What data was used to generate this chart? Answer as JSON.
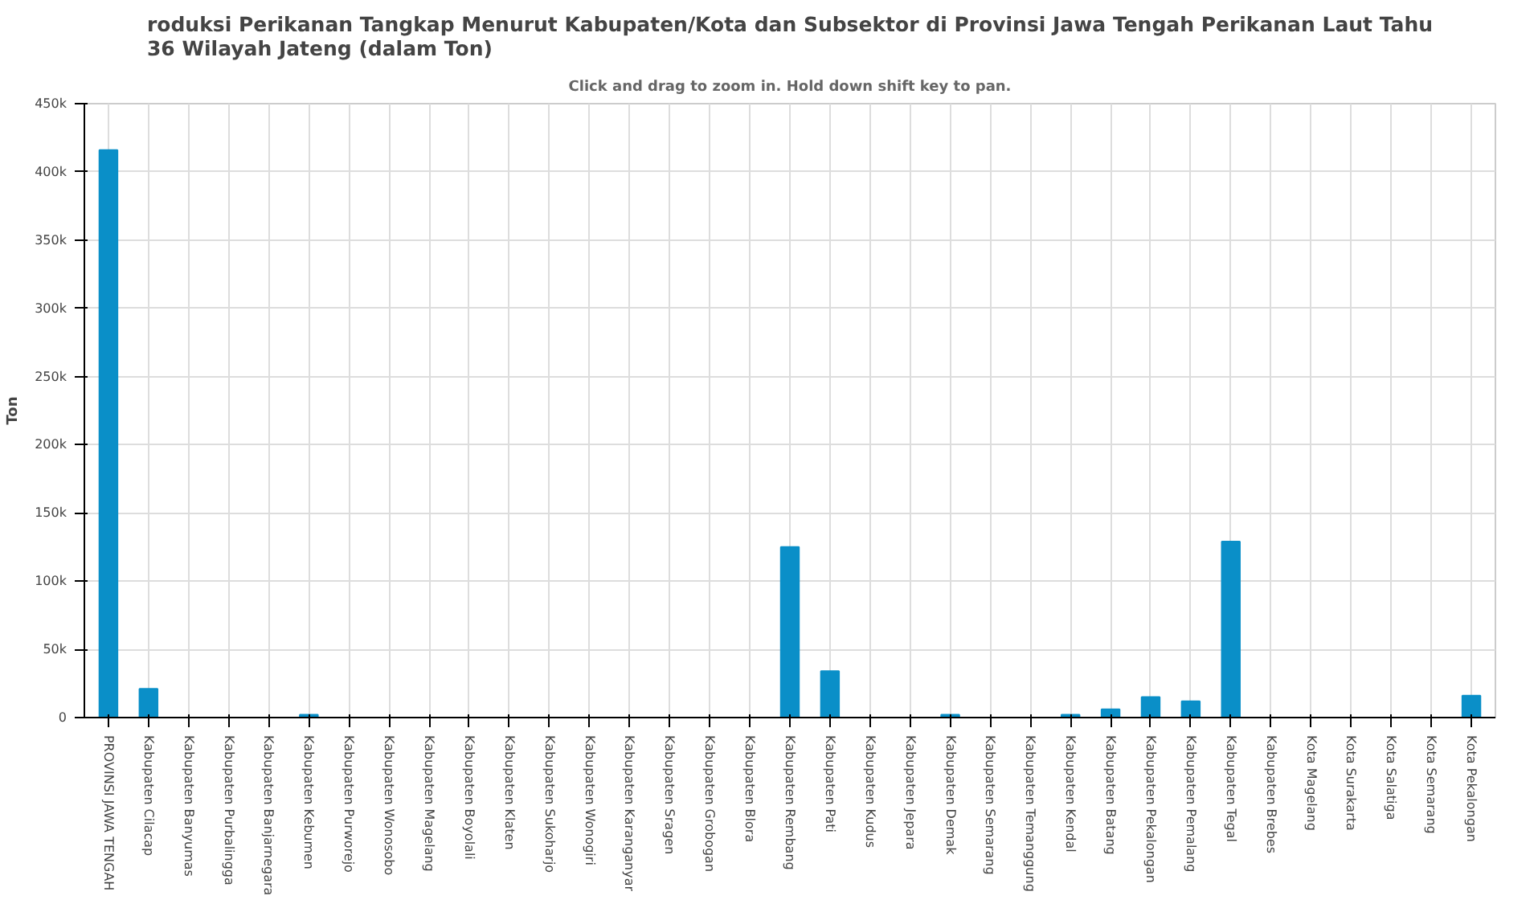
{
  "chart_data": {
    "type": "bar",
    "title": "roduksi Perikanan Tangkap Menurut Kabupaten/Kota dan Subsektor di Provinsi Jawa Tengah Perikanan Laut Tahu\n36 Wilayah Jateng (dalam Ton)",
    "subtitle": "Click and drag to zoom in. Hold down shift key to pan.",
    "ylabel": "Ton",
    "categories": [
      "PROVINSI JAWA TENGAH",
      "Kabupaten Cilacap",
      "Kabupaten Banyumas",
      "Kabupaten Purbalingga",
      "Kabupaten Banjarnegara",
      "Kabupaten Kebumen",
      "Kabupaten Purworejo",
      "Kabupaten Wonosobo",
      "Kabupaten Magelang",
      "Kabupaten Boyolali",
      "Kabupaten Klaten",
      "Kabupaten Sukoharjo",
      "Kabupaten Wonogiri",
      "Kabupaten Karanganyar",
      "Kabupaten Sragen",
      "Kabupaten Grobogan",
      "Kabupaten Blora",
      "Kabupaten Rembang",
      "Kabupaten Pati",
      "Kabupaten Kudus",
      "Kabupaten Jepara",
      "Kabupaten Demak",
      "Kabupaten Semarang",
      "Kabupaten Temanggung",
      "Kabupaten Kendal",
      "Kabupaten Batang",
      "Kabupaten Pekalongan",
      "Kabupaten Pemalang",
      "Kabupaten Tegal",
      "Kabupaten Brebes",
      "Kota Magelang",
      "Kota Surakarta",
      "Kota Salatiga",
      "Kota Semarang",
      "Kota Pekalongan"
    ],
    "values": [
      416000,
      21000,
      0,
      0,
      0,
      2000,
      0,
      0,
      0,
      0,
      0,
      0,
      0,
      0,
      0,
      0,
      0,
      125000,
      34000,
      0,
      0,
      2000,
      0,
      0,
      2000,
      6000,
      15000,
      12000,
      129000,
      0,
      0,
      0,
      0,
      0,
      16000
    ],
    "color": "#0a8fc8",
    "ylim": [
      0,
      450000
    ],
    "yticks": [
      {
        "value": 0,
        "label": "0"
      },
      {
        "value": 50000,
        "label": "50k"
      },
      {
        "value": 100000,
        "label": "100k"
      },
      {
        "value": 150000,
        "label": "150k"
      },
      {
        "value": 200000,
        "label": "200k"
      },
      {
        "value": 250000,
        "label": "250k"
      },
      {
        "value": 300000,
        "label": "300k"
      },
      {
        "value": 350000,
        "label": "350k"
      },
      {
        "value": 400000,
        "label": "400k"
      },
      {
        "value": 450000,
        "label": "450k"
      }
    ],
    "grid": true
  }
}
